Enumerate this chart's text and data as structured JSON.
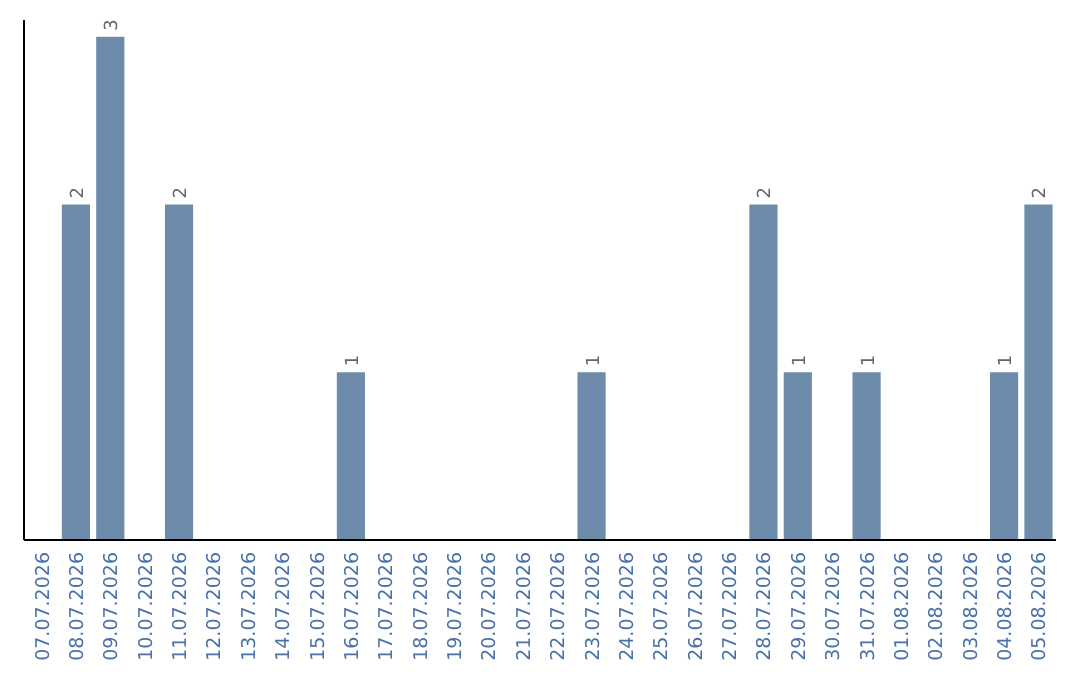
{
  "chart_data": {
    "type": "bar",
    "categories": [
      "07.07.2026",
      "08.07.2026",
      "09.07.2026",
      "10.07.2026",
      "11.07.2026",
      "12.07.2026",
      "13.07.2026",
      "14.07.2026",
      "15.07.2026",
      "16.07.2026",
      "17.07.2026",
      "18.07.2026",
      "19.07.2026",
      "20.07.2026",
      "21.07.2026",
      "22.07.2026",
      "23.07.2026",
      "24.07.2026",
      "25.07.2026",
      "26.07.2026",
      "27.07.2026",
      "28.07.2026",
      "29.07.2026",
      "30.07.2026",
      "31.07.2026",
      "01.08.2026",
      "02.08.2026",
      "03.08.2026",
      "04.08.2026",
      "05.08.2026"
    ],
    "values": [
      0,
      2,
      3,
      0,
      2,
      0,
      0,
      0,
      0,
      1,
      0,
      0,
      0,
      0,
      0,
      0,
      1,
      0,
      0,
      0,
      0,
      2,
      1,
      0,
      1,
      0,
      0,
      0,
      1,
      2
    ],
    "value_labels": [
      null,
      "2",
      "3",
      null,
      "2",
      null,
      null,
      null,
      null,
      "1",
      null,
      null,
      null,
      null,
      null,
      null,
      "1",
      null,
      null,
      null,
      null,
      "2",
      "1",
      null,
      "1",
      null,
      null,
      null,
      "1",
      "2"
    ],
    "color": "#6d8cab",
    "ylim": [
      0,
      3.1
    ],
    "tick_labels": "x"
  }
}
